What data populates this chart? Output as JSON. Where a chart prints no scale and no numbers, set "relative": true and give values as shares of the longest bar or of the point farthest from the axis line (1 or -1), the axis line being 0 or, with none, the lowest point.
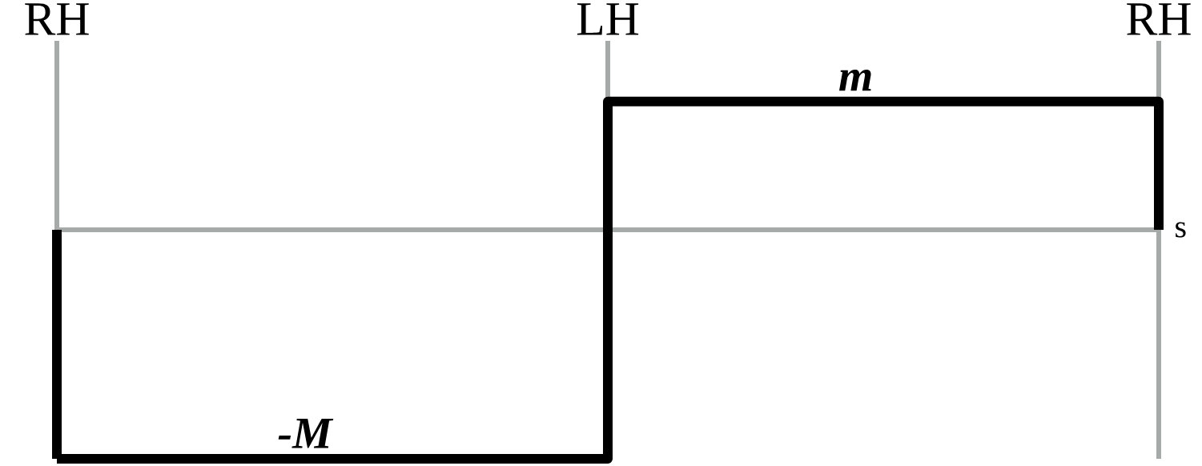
{
  "chart_data": {
    "type": "step",
    "relative": true,
    "xlabel": "s",
    "categories": [
      "RH",
      "LH",
      "RH"
    ],
    "series": [
      {
        "color": "#000000",
        "values": [
          -1,
          0.56,
          0
        ]
      }
    ],
    "grid": "x",
    "annotations": [
      {
        "text": "-M",
        "y": -1
      },
      {
        "text": "m",
        "y": 0.56
      }
    ]
  }
}
